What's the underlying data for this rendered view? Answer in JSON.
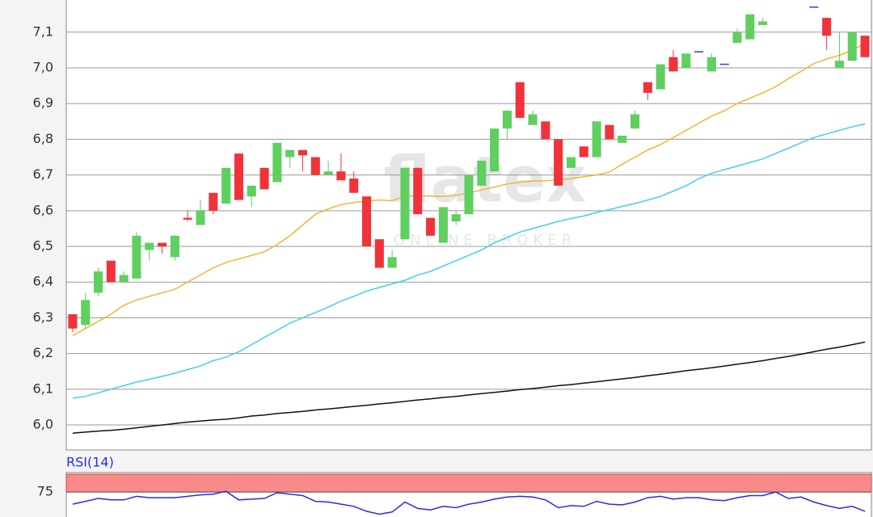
{
  "chart_data": [
    {
      "type": "candlestick",
      "watermark": "flatex",
      "watermark_subtitle": "ONLINE BROKER",
      "up_color": "#5fcf5f",
      "down_color": "#f0333a",
      "doji_color": "#3a3acc",
      "ylim": [
        5.93,
        7.19
      ],
      "yticks": [
        {
          "value": 6.0,
          "label": "6,0"
        },
        {
          "value": 6.1,
          "label": "6,1"
        },
        {
          "value": 6.2,
          "label": "6,2"
        },
        {
          "value": 6.3,
          "label": "6,3"
        },
        {
          "value": 6.4,
          "label": "6,4"
        },
        {
          "value": 6.5,
          "label": "6,5"
        },
        {
          "value": 6.6,
          "label": "6,6"
        },
        {
          "value": 6.7,
          "label": "6,7"
        },
        {
          "value": 6.8,
          "label": "6,8"
        },
        {
          "value": 6.9,
          "label": "6,9"
        },
        {
          "value": 7.0,
          "label": "7,0"
        },
        {
          "value": 7.1,
          "label": "7,1"
        }
      ],
      "grid": true,
      "open": [
        6.31,
        6.28,
        6.37,
        6.46,
        6.4,
        6.41,
        6.49,
        6.51,
        6.47,
        6.58,
        6.56,
        6.65,
        6.62,
        6.76,
        6.64,
        6.72,
        6.68,
        6.75,
        6.77,
        6.75,
        6.7,
        6.71,
        6.69,
        6.64,
        6.52,
        6.44,
        6.52,
        6.72,
        6.58,
        6.51,
        6.57,
        6.59,
        6.67,
        6.71,
        6.83,
        6.96,
        6.84,
        6.85,
        6.8,
        6.72,
        6.78,
        6.75,
        6.84,
        6.79,
        6.83,
        6.96,
        6.94,
        7.03,
        7.0,
        7.045,
        6.99,
        7.01,
        7.07,
        7.08,
        7.12,
        null,
        null,
        null,
        7.17,
        7.14,
        7.0,
        7.02,
        7.09
      ],
      "high": [
        6.31,
        6.37,
        6.44,
        6.46,
        6.43,
        6.54,
        6.51,
        6.51,
        6.53,
        6.6,
        6.63,
        6.65,
        6.72,
        6.76,
        6.67,
        6.72,
        6.79,
        6.77,
        6.77,
        6.75,
        6.74,
        6.76,
        6.71,
        6.64,
        6.52,
        6.49,
        6.72,
        6.72,
        6.58,
        6.61,
        6.6,
        6.7,
        6.74,
        6.83,
        6.88,
        6.96,
        6.88,
        6.85,
        6.8,
        6.75,
        6.78,
        6.85,
        6.84,
        6.81,
        6.88,
        6.96,
        7.01,
        7.05,
        7.04,
        7.045,
        7.04,
        7.01,
        7.11,
        7.15,
        7.14,
        null,
        null,
        null,
        7.17,
        7.14,
        7.1,
        7.1,
        7.09
      ],
      "low": [
        6.26,
        6.27,
        6.36,
        6.4,
        6.4,
        6.41,
        6.46,
        6.48,
        6.46,
        6.57,
        6.56,
        6.59,
        6.62,
        6.63,
        6.61,
        6.66,
        6.68,
        6.72,
        6.71,
        6.7,
        6.7,
        6.685,
        6.65,
        6.5,
        6.44,
        6.44,
        6.52,
        6.59,
        6.53,
        6.51,
        6.56,
        6.59,
        6.67,
        6.71,
        6.8,
        6.86,
        6.84,
        6.8,
        6.67,
        6.72,
        6.75,
        6.75,
        6.8,
        6.79,
        6.83,
        6.91,
        6.94,
        6.99,
        7.0,
        7.045,
        6.99,
        7.01,
        7.07,
        7.08,
        7.12,
        null,
        null,
        null,
        7.17,
        7.05,
        7.0,
        7.02,
        7.03
      ],
      "close": [
        6.27,
        6.35,
        6.43,
        6.4,
        6.42,
        6.53,
        6.51,
        6.5,
        6.53,
        6.575,
        6.6,
        6.6,
        6.72,
        6.63,
        6.67,
        6.66,
        6.79,
        6.77,
        6.755,
        6.7,
        6.71,
        6.685,
        6.65,
        6.5,
        6.44,
        6.47,
        6.72,
        6.59,
        6.53,
        6.61,
        6.59,
        6.7,
        6.74,
        6.83,
        6.88,
        6.86,
        6.87,
        6.8,
        6.67,
        6.75,
        6.75,
        6.85,
        6.8,
        6.81,
        6.87,
        6.93,
        7.01,
        6.99,
        7.04,
        7.045,
        7.03,
        7.01,
        7.1,
        7.15,
        7.13,
        null,
        null,
        null,
        7.17,
        7.09,
        7.02,
        7.1,
        7.03
      ],
      "lines": [
        {
          "color": "#f5b335",
          "values": [
            6.25,
            6.27,
            6.29,
            6.31,
            6.335,
            6.35,
            6.36,
            6.37,
            6.38,
            6.4,
            6.42,
            6.44,
            6.455,
            6.465,
            6.475,
            6.485,
            6.505,
            6.53,
            6.56,
            6.59,
            6.605,
            6.617,
            6.623,
            6.627,
            6.63,
            6.628,
            6.64,
            6.642,
            6.641,
            6.64,
            6.643,
            6.65,
            6.658,
            6.666,
            6.675,
            6.68,
            6.683,
            6.684,
            6.686,
            6.69,
            6.695,
            6.7,
            6.708,
            6.73,
            6.75,
            6.77,
            6.785,
            6.805,
            6.825,
            6.845,
            6.865,
            6.88,
            6.9,
            6.915,
            6.93,
            6.947,
            6.97,
            6.99,
            7.012,
            7.025,
            7.035,
            7.05,
            7.068
          ]
        },
        {
          "color": "#3fd0f0",
          "values": [
            6.075,
            6.08,
            6.09,
            6.1,
            6.11,
            6.12,
            6.128,
            6.136,
            6.145,
            6.155,
            6.165,
            6.18,
            6.19,
            6.205,
            6.225,
            6.245,
            6.265,
            6.285,
            6.3,
            6.315,
            6.33,
            6.347,
            6.36,
            6.375,
            6.385,
            6.395,
            6.405,
            6.42,
            6.43,
            6.445,
            6.46,
            6.475,
            6.49,
            6.51,
            6.525,
            6.54,
            6.55,
            6.56,
            6.57,
            6.578,
            6.585,
            6.595,
            6.603,
            6.612,
            6.62,
            6.63,
            6.64,
            6.655,
            6.67,
            6.69,
            6.705,
            6.715,
            6.725,
            6.735,
            6.745,
            6.76,
            6.775,
            6.79,
            6.805,
            6.815,
            6.825,
            6.835,
            6.843
          ]
        },
        {
          "color": "#111111",
          "values": [
            5.977,
            5.98,
            5.983,
            5.985,
            5.988,
            5.992,
            5.996,
            6.0,
            6.004,
            6.008,
            6.011,
            6.014,
            6.016,
            6.02,
            6.025,
            6.028,
            6.032,
            6.035,
            6.038,
            6.042,
            6.045,
            6.048,
            6.052,
            6.055,
            6.059,
            6.062,
            6.066,
            6.07,
            6.073,
            6.077,
            6.08,
            6.084,
            6.088,
            6.091,
            6.095,
            6.099,
            6.102,
            6.106,
            6.11,
            6.113,
            6.117,
            6.121,
            6.125,
            6.129,
            6.133,
            6.138,
            6.142,
            6.147,
            6.152,
            6.156,
            6.16,
            6.165,
            6.17,
            6.175,
            6.18,
            6.186,
            6.192,
            6.198,
            6.205,
            6.212,
            6.218,
            6.225,
            6.232
          ]
        }
      ]
    },
    {
      "type": "line",
      "title": "RSI(14)",
      "color": "#2a2af0",
      "ylim": [
        40,
        100
      ],
      "yticks": [
        75
      ],
      "band": [
        75,
        100
      ],
      "band_color": "#f88a8a",
      "values": [
        58,
        62,
        66,
        64,
        64,
        69,
        67,
        67,
        67,
        69,
        71,
        72,
        76,
        64,
        65,
        66,
        74,
        72,
        70,
        62,
        61,
        58,
        55,
        48,
        44,
        47,
        61,
        52,
        50,
        55,
        53,
        58,
        61,
        65,
        68,
        69,
        68,
        64,
        53,
        56,
        55,
        62,
        58,
        57,
        61,
        67,
        69,
        65,
        67,
        67,
        64,
        63,
        67,
        70,
        70,
        75,
        66,
        68,
        61,
        56,
        52,
        55,
        48
      ]
    }
  ]
}
